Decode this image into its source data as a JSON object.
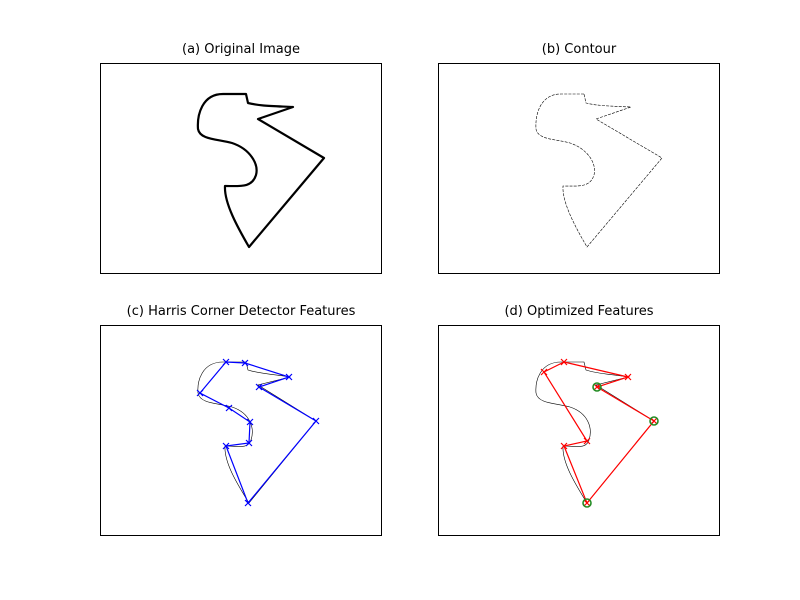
{
  "panels": [
    {
      "title": "(a) Original Image"
    },
    {
      "title": "(b) Contour"
    },
    {
      "title": "(c) Harris Corner Detector Features"
    },
    {
      "title": "(d) Optimized Features"
    }
  ],
  "colors": {
    "outline": "#000000",
    "harris": "#0000ff",
    "optimized": "#ff0000",
    "highlight": "#228b22"
  }
}
